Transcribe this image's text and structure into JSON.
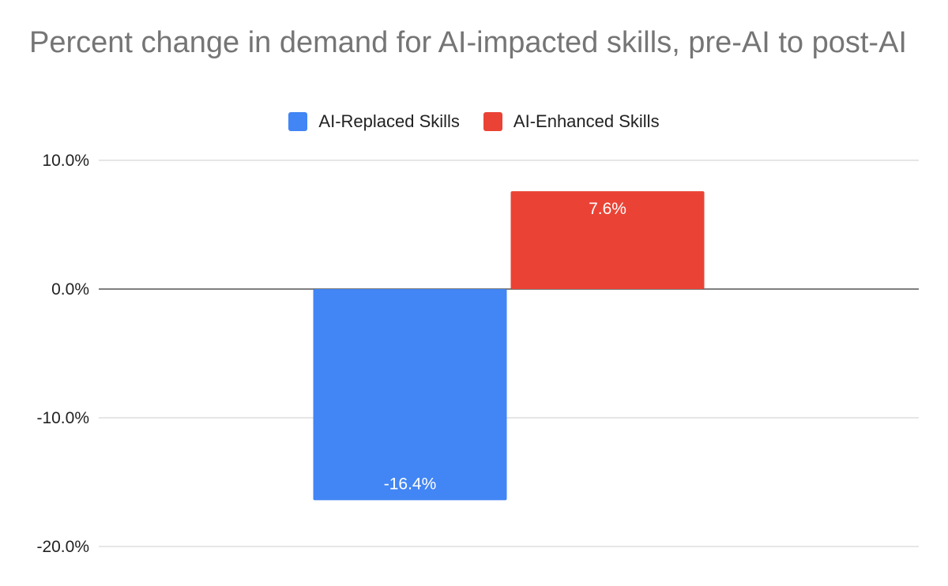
{
  "chart_data": {
    "type": "bar",
    "title": "Percent change in demand for AI-impacted skills, pre-AI to post-AI",
    "xlabel": "",
    "ylabel": "",
    "categories": [
      ""
    ],
    "series": [
      {
        "name": "AI-Replaced Skills",
        "values": [
          -16.4
        ],
        "color": "#4285f4",
        "label": "-16.4%"
      },
      {
        "name": "AI-Enhanced Skills",
        "values": [
          7.6
        ],
        "color": "#ea4335",
        "label": "7.6%"
      }
    ],
    "ylim": [
      -20,
      10
    ],
    "yticks": [
      10,
      0,
      -10,
      -20
    ],
    "ytick_labels": [
      "10.0%",
      "0.0%",
      "-10.0%",
      "-20.0%"
    ],
    "grid": true,
    "legend_position": "top-center"
  }
}
